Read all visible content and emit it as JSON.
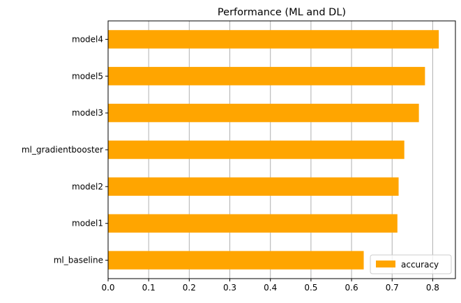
{
  "chart_data": {
    "type": "bar",
    "orientation": "horizontal",
    "title": "Performance (ML and DL)",
    "xlabel": "",
    "ylabel": "",
    "categories": [
      "ml_baseline",
      "model1",
      "model2",
      "ml_gradientbooster",
      "model3",
      "model5",
      "model4"
    ],
    "series": [
      {
        "name": "accuracy",
        "values": [
          0.63,
          0.713,
          0.716,
          0.73,
          0.766,
          0.781,
          0.815
        ]
      }
    ],
    "x_ticks": [
      "0.0",
      "0.1",
      "0.2",
      "0.3",
      "0.4",
      "0.5",
      "0.6",
      "0.7",
      "0.8"
    ],
    "xlim": [
      0,
      0.856
    ],
    "grid": "vertical",
    "legend_position": "bottom-right",
    "colors": {
      "bar": "#ffa500",
      "grid": "#b0b0b0",
      "axis": "#000000"
    }
  }
}
